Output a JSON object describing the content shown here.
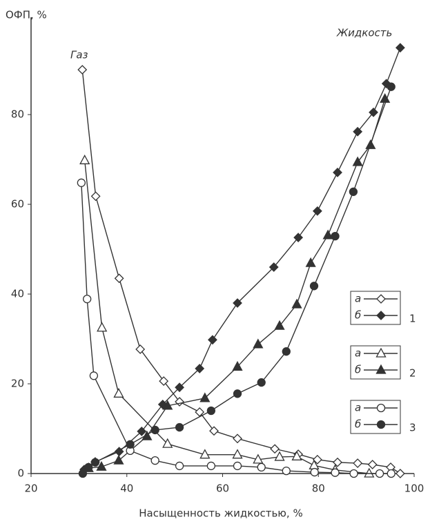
{
  "chart_data": {
    "type": "line",
    "ylabel": "ОФП, %",
    "xlabel": "Насыщенность жидкостью, %",
    "annotations": [
      "Газ",
      "Жидкость"
    ],
    "xlim": [
      20,
      100
    ],
    "xticks": [
      20,
      40,
      60,
      80,
      100
    ],
    "ylim": [
      0,
      100
    ],
    "yticks": [
      0,
      20,
      40,
      60,
      80
    ],
    "series": [
      {
        "name": "а",
        "group": "1",
        "marker": "diamond",
        "filled": false,
        "color": "#333333",
        "x": [
          30.7,
          33.5,
          38.4,
          42.8,
          47.7,
          51,
          55.2,
          58.2,
          63.1,
          70.9,
          75.8,
          79.8,
          84,
          88.2,
          91.3,
          95.1,
          97.1
        ],
        "values": [
          90,
          61.8,
          43.5,
          27.7,
          20.6,
          16,
          13.7,
          9.5,
          7.8,
          5.5,
          4.3,
          3.1,
          2.5,
          2.3,
          2,
          1.4,
          0
        ]
      },
      {
        "name": "б",
        "group": "1",
        "marker": "diamond",
        "filled": true,
        "color": "#333333",
        "x": [
          31.1,
          33.4,
          38.4,
          43.1,
          47.5,
          51,
          55.2,
          57.9,
          63.1,
          70.7,
          75.8,
          79.8,
          84,
          88.2,
          91.5,
          94.2,
          97.1
        ],
        "values": [
          0.9,
          2.6,
          4.9,
          9.4,
          15.4,
          19.2,
          23.4,
          29.8,
          38,
          46,
          52.6,
          58.5,
          67.1,
          76.2,
          80.5,
          86.9,
          94.9
        ]
      },
      {
        "name": "а",
        "group": "2",
        "marker": "triangle",
        "filled": false,
        "color": "#333333",
        "x": [
          31.2,
          34.8,
          38.3,
          48.5,
          56.3,
          63.1,
          67.4,
          71.9,
          75.5,
          79.1,
          83.5,
          90.6
        ],
        "values": [
          69.8,
          32.5,
          17.8,
          6.6,
          4.2,
          4.2,
          3.1,
          3.7,
          3.8,
          1.8,
          0.8,
          0
        ]
      },
      {
        "name": "б",
        "group": "2",
        "marker": "triangle",
        "filled": true,
        "color": "#333333",
        "x": [
          32,
          34.7,
          38.3,
          44.2,
          48.5,
          56.3,
          63.1,
          67.4,
          71.9,
          75.5,
          78.4,
          82,
          88.2,
          90.9,
          93.9
        ],
        "values": [
          1.2,
          1.5,
          2.9,
          8.3,
          15.1,
          16.8,
          23.8,
          28.8,
          32.9,
          37.7,
          46.9,
          53.1,
          69.4,
          73.2,
          83.5
        ]
      },
      {
        "name": "а",
        "group": "3",
        "marker": "circle",
        "filled": false,
        "color": "#333333",
        "x": [
          30.5,
          31.7,
          33.1,
          40.7,
          45.9,
          51,
          57.6,
          63.1,
          68.1,
          73.3,
          79.2,
          83.5,
          87.4,
          92.8,
          95.2
        ],
        "values": [
          64.8,
          38.9,
          21.8,
          5.1,
          2.9,
          1.7,
          1.7,
          1.7,
          1.4,
          0.6,
          0.3,
          0.2,
          0,
          0,
          0
        ]
      },
      {
        "name": "б",
        "group": "3",
        "marker": "circle",
        "filled": true,
        "color": "#333333",
        "x": [
          30.8,
          32,
          33.4,
          40.7,
          45.9,
          51,
          57.6,
          63.1,
          68.1,
          73.3,
          79.1,
          83.5,
          87.3,
          95.2
        ],
        "values": [
          0,
          1.4,
          2.5,
          6.5,
          9.7,
          10.3,
          14,
          17.8,
          20.3,
          27.2,
          41.8,
          52.9,
          62.8,
          86.2
        ]
      }
    ]
  }
}
